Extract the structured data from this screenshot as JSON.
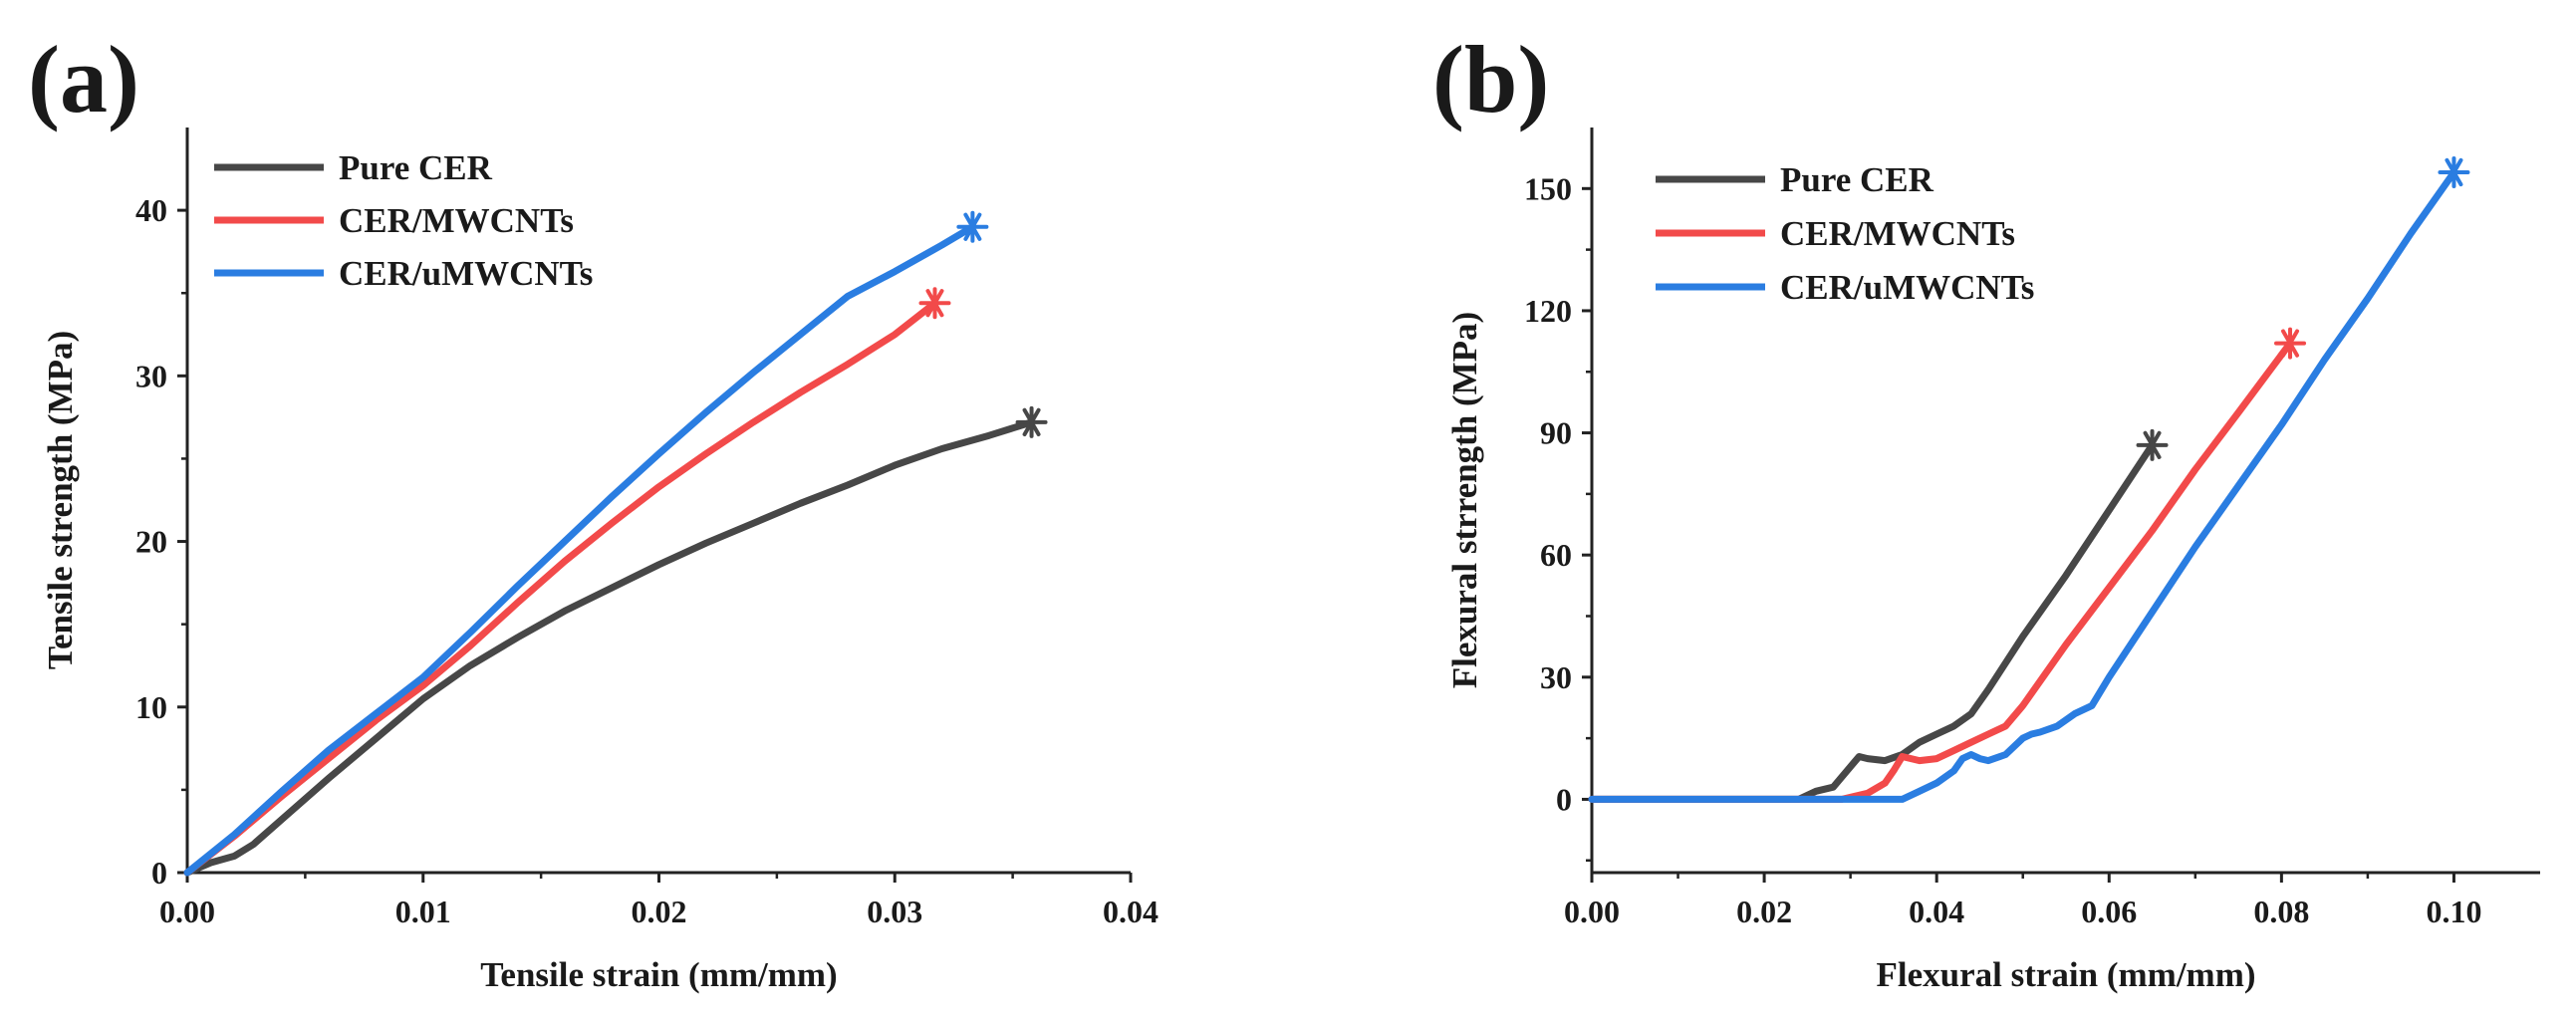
{
  "chart_data": [
    {
      "panel_label": "(a)",
      "type": "line",
      "xlabel": "Tensile strain (mm/mm)",
      "ylabel": "Tensile strength (MPa)",
      "xlim": [
        0.0,
        0.04
      ],
      "ylim": [
        0,
        45
      ],
      "xticks": [
        "0.00",
        "0.01",
        "0.02",
        "0.03",
        "0.04"
      ],
      "yticks": [
        "0",
        "10",
        "20",
        "30",
        "40"
      ],
      "legend_position": "top-left",
      "series": [
        {
          "name": "Pure CER",
          "color": "#474747",
          "x": [
            0,
            0.001,
            0.002,
            0.0028,
            0.004,
            0.006,
            0.008,
            0.01,
            0.012,
            0.014,
            0.016,
            0.018,
            0.02,
            0.022,
            0.024,
            0.026,
            0.028,
            0.03,
            0.032,
            0.034,
            0.0358
          ],
          "y": [
            0,
            0.6,
            1.0,
            1.7,
            3.2,
            5.7,
            8.1,
            10.5,
            12.5,
            14.2,
            15.8,
            17.2,
            18.6,
            19.9,
            21.1,
            22.3,
            23.4,
            24.6,
            25.6,
            26.4,
            27.2
          ],
          "end_marker": "asterisk"
        },
        {
          "name": "CER/MWCNTs",
          "color": "#f24a4a",
          "x": [
            0,
            0.002,
            0.004,
            0.006,
            0.008,
            0.01,
            0.012,
            0.014,
            0.016,
            0.018,
            0.02,
            0.022,
            0.024,
            0.026,
            0.028,
            0.03,
            0.0317
          ],
          "y": [
            0,
            2.2,
            4.6,
            6.9,
            9.2,
            11.3,
            13.7,
            16.3,
            18.8,
            21.1,
            23.3,
            25.3,
            27.2,
            29.0,
            30.7,
            32.5,
            34.4
          ],
          "end_marker": "asterisk"
        },
        {
          "name": "CER/uMWCNTs",
          "color": "#2a7de1",
          "x": [
            0,
            0.002,
            0.004,
            0.006,
            0.008,
            0.01,
            0.012,
            0.014,
            0.016,
            0.018,
            0.02,
            0.022,
            0.024,
            0.026,
            0.028,
            0.03,
            0.032,
            0.0333
          ],
          "y": [
            0,
            2.3,
            4.9,
            7.4,
            9.6,
            11.8,
            14.5,
            17.3,
            20.0,
            22.7,
            25.3,
            27.8,
            30.2,
            32.5,
            34.8,
            36.3,
            37.9,
            39.0
          ],
          "end_marker": "asterisk"
        }
      ]
    },
    {
      "panel_label": "(b)",
      "type": "line",
      "xlabel": "Flexural strain (mm/mm)",
      "ylabel": "Flexural strrength (MPa)",
      "xlim": [
        0.0,
        0.11
      ],
      "ylim": [
        -18,
        165
      ],
      "xticks": [
        "0.00",
        "0.02",
        "0.04",
        "0.06",
        "0.08",
        "0.10"
      ],
      "yticks": [
        "0",
        "30",
        "60",
        "90",
        "120",
        "150"
      ],
      "legend_position": "top-left",
      "series": [
        {
          "name": "Pure CER",
          "color": "#474747",
          "x": [
            0,
            0.024,
            0.026,
            0.028,
            0.03,
            0.031,
            0.032,
            0.034,
            0.036,
            0.038,
            0.04,
            0.042,
            0.044,
            0.046,
            0.05,
            0.055,
            0.06,
            0.065
          ],
          "y": [
            0,
            0,
            2,
            3,
            8,
            10.5,
            10,
            9.5,
            11,
            14,
            16,
            18,
            21,
            27,
            40,
            55,
            71,
            87
          ],
          "end_marker": "asterisk"
        },
        {
          "name": "CER/MWCNTs",
          "color": "#f24a4a",
          "x": [
            0,
            0.029,
            0.032,
            0.034,
            0.035,
            0.036,
            0.038,
            0.04,
            0.042,
            0.044,
            0.046,
            0.048,
            0.05,
            0.055,
            0.06,
            0.065,
            0.07,
            0.075,
            0.081
          ],
          "y": [
            0,
            0,
            1.5,
            4,
            7,
            10.5,
            9.5,
            10,
            12,
            14,
            16,
            18,
            23,
            38,
            52,
            66,
            81,
            95,
            112
          ],
          "end_marker": "asterisk"
        },
        {
          "name": "CER/uMWCNTs",
          "color": "#2a7de1",
          "x": [
            0,
            0.036,
            0.038,
            0.04,
            0.042,
            0.043,
            0.044,
            0.045,
            0.046,
            0.048,
            0.05,
            0.051,
            0.052,
            0.054,
            0.056,
            0.058,
            0.06,
            0.065,
            0.07,
            0.075,
            0.08,
            0.085,
            0.09,
            0.095,
            0.1
          ],
          "y": [
            0,
            0,
            2,
            4,
            7,
            10,
            11,
            10,
            9.5,
            11,
            15,
            16,
            16.5,
            18,
            21,
            23,
            30,
            46,
            62,
            77,
            92,
            108,
            123,
            139,
            154
          ],
          "end_marker": "asterisk"
        }
      ]
    }
  ]
}
